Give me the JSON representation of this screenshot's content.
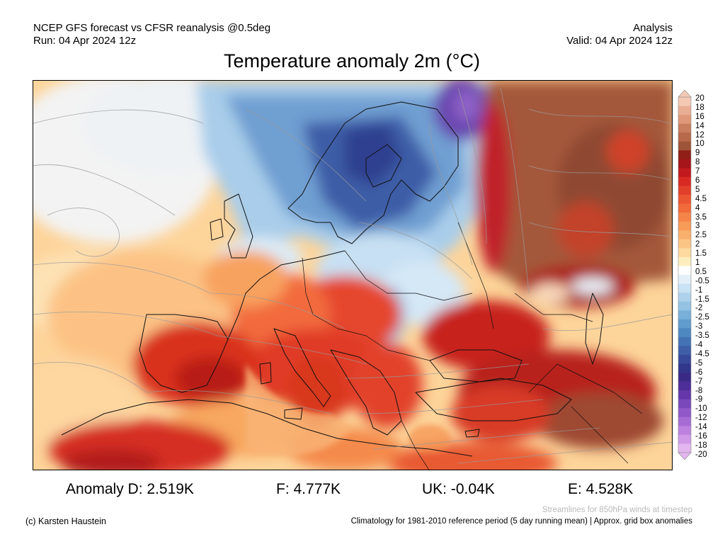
{
  "header": {
    "left_line1": "NCEP GFS forecast vs CFSR reanalysis @0.5deg",
    "left_line2": "Run: 04 Apr 2024 12z",
    "right_line1": "Analysis",
    "right_line2": "Valid: 04 Apr 2024 12z"
  },
  "title": "Temperature anomaly 2m (°C)",
  "colorbar": {
    "labels": [
      "20",
      "18",
      "16",
      "14",
      "12",
      "10",
      "9",
      "8",
      "7",
      "6",
      "5",
      "4.5",
      "4",
      "3.5",
      "3",
      "2.5",
      "2",
      "1.5",
      "1",
      "0.5",
      "-0.5",
      "-1",
      "-1.5",
      "-2",
      "-2.5",
      "-3",
      "-3.5",
      "-4",
      "-4.5",
      "-5",
      "-6",
      "-7",
      "-8",
      "-9",
      "-10",
      "-12",
      "-14",
      "-16",
      "-18",
      "-20"
    ],
    "colors": [
      "#f3c9b4",
      "#e9ae94",
      "#df987a",
      "#c97d5f",
      "#b8694b",
      "#9e5438",
      "#8f1f17",
      "#a5151a",
      "#c2191f",
      "#d82a22",
      "#e2402a",
      "#ec5531",
      "#f16a3a",
      "#f58449",
      "#f89a58",
      "#fab06d",
      "#fbc585",
      "#fcd99e",
      "#fdeebe",
      "#ffffff",
      "#e3f0fa",
      "#c9e2f4",
      "#aed2ec",
      "#94c2e3",
      "#79b0d9",
      "#609dcd",
      "#4e88c1",
      "#4473b5",
      "#3e5fa8",
      "#38499a",
      "#33378b",
      "#3a2a86",
      "#4e2e98",
      "#6438aa",
      "#7a48bb",
      "#9159c8",
      "#a76cd4",
      "#bd82df",
      "#d09ae8",
      "#e3b6f0"
    ]
  },
  "map": {
    "description_colors": {
      "warm_strong": "#d7301f",
      "warm_mid": "#f46d43",
      "warm_light": "#fdae61",
      "warm_pale": "#fee090",
      "neutral": "#f7f7f7",
      "cool_light": "#c6dbef",
      "cool_mid": "#6baed6",
      "cool_deep": "#2c4f9e",
      "cool_violet": "#54278f",
      "brown": "#9c5a3c"
    }
  },
  "anomalies": {
    "d": "Anomaly D: 2.519K",
    "f": "F: 4.777K",
    "uk": "UK: -0.04K",
    "e": "E: 4.528K"
  },
  "footer": {
    "credit": "(c) Karsten Haustein",
    "streamlines": "Streamlines for 850hPa winds at timestep",
    "climatology": "Climatology for 1981-2010 reference period (5 day running mean) | Approx. grid box anomalies"
  }
}
